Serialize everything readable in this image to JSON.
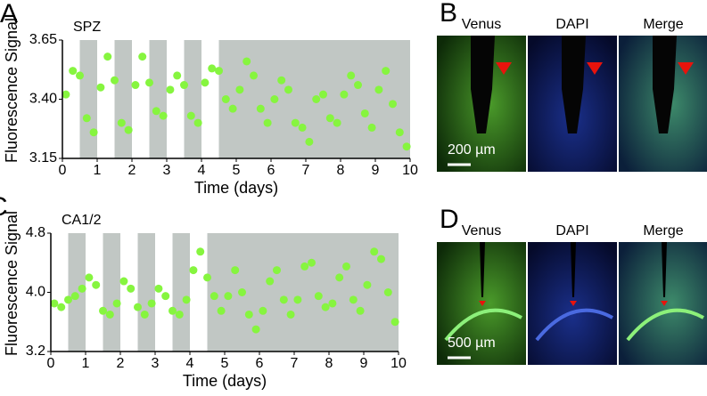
{
  "chart_data": [
    {
      "panel": "A",
      "type": "scatter",
      "title": "SPZ",
      "xlabel": "Time (days)",
      "ylabel": "Fluorescence Signal",
      "color": "#86f53f",
      "shaded": [
        [
          0.5,
          1
        ],
        [
          1.5,
          2
        ],
        [
          2.5,
          3
        ],
        [
          3.5,
          4
        ],
        [
          4.5,
          10
        ]
      ],
      "shade_color": "#c1c7c4",
      "x": [
        0.1,
        0.3,
        0.5,
        0.7,
        0.9,
        1.1,
        1.3,
        1.5,
        1.7,
        1.9,
        2.1,
        2.3,
        2.5,
        2.7,
        2.9,
        3.1,
        3.3,
        3.5,
        3.7,
        3.9,
        4.1,
        4.3,
        4.5,
        4.7,
        4.9,
        5.1,
        5.3,
        5.5,
        5.7,
        5.9,
        6.1,
        6.3,
        6.5,
        6.7,
        6.9,
        7.1,
        7.3,
        7.5,
        7.7,
        7.9,
        8.1,
        8.3,
        8.5,
        8.7,
        8.9,
        9.1,
        9.3,
        9.5,
        9.7,
        9.9
      ],
      "values": [
        3.42,
        3.52,
        3.5,
        3.32,
        3.26,
        3.45,
        3.58,
        3.48,
        3.3,
        3.27,
        3.46,
        3.58,
        3.47,
        3.35,
        3.33,
        3.44,
        3.5,
        3.46,
        3.33,
        3.3,
        3.47,
        3.53,
        3.52,
        3.4,
        3.36,
        3.44,
        3.56,
        3.5,
        3.36,
        3.3,
        3.4,
        3.48,
        3.44,
        3.3,
        3.28,
        3.22,
        3.4,
        3.42,
        3.32,
        3.3,
        3.42,
        3.5,
        3.46,
        3.34,
        3.28,
        3.44,
        3.52,
        3.38,
        3.26,
        3.2
      ],
      "xlim": [
        0,
        10
      ],
      "ylim": [
        3.15,
        3.65
      ],
      "xticks": [
        0,
        1,
        2,
        3,
        4,
        5,
        6,
        7,
        8,
        9,
        10
      ],
      "yticks": [
        3.15,
        {
          "value": 3.4,
          "label": "3.40"
        },
        3.65
      ]
    },
    {
      "panel": "C",
      "type": "scatter",
      "title": "CA1/2",
      "xlabel": "Time (days)",
      "ylabel": "Fluorescence Signal",
      "color": "#86f53f",
      "shaded": [
        [
          0.5,
          1
        ],
        [
          1.5,
          2
        ],
        [
          2.5,
          3
        ],
        [
          3.5,
          4
        ],
        [
          4.5,
          10
        ]
      ],
      "shade_color": "#c1c7c4",
      "x": [
        0.1,
        0.3,
        0.5,
        0.7,
        0.9,
        1.1,
        1.3,
        1.5,
        1.7,
        1.9,
        2.1,
        2.3,
        2.5,
        2.7,
        2.9,
        3.1,
        3.3,
        3.5,
        3.7,
        3.9,
        4.1,
        4.3,
        4.5,
        4.7,
        4.9,
        5.1,
        5.3,
        5.5,
        5.7,
        5.9,
        6.1,
        6.3,
        6.5,
        6.7,
        6.9,
        7.1,
        7.3,
        7.5,
        7.7,
        7.9,
        8.1,
        8.3,
        8.5,
        8.7,
        8.9,
        9.1,
        9.3,
        9.5,
        9.7,
        9.9
      ],
      "values": [
        3.85,
        3.8,
        3.9,
        3.95,
        4.05,
        4.2,
        4.1,
        3.75,
        3.7,
        3.85,
        4.15,
        4.05,
        3.8,
        3.7,
        3.85,
        4.05,
        3.95,
        3.75,
        3.7,
        3.9,
        4.3,
        4.55,
        4.2,
        3.95,
        3.75,
        3.95,
        4.3,
        4.0,
        3.7,
        3.5,
        3.75,
        4.15,
        4.3,
        3.9,
        3.7,
        3.9,
        4.35,
        4.4,
        3.95,
        3.8,
        3.85,
        4.2,
        4.35,
        3.9,
        3.75,
        4.1,
        4.55,
        4.45,
        4.0,
        3.6
      ],
      "xlim": [
        0,
        10
      ],
      "ylim": [
        3.2,
        4.8
      ],
      "xticks": [
        0,
        1,
        2,
        3,
        4,
        5,
        6,
        7,
        8,
        9,
        10
      ],
      "yticks": [
        3.2,
        {
          "value": 4,
          "label": "4.0"
        },
        4.8
      ]
    }
  ],
  "images": [
    {
      "panel": "B",
      "labels": [
        "Venus",
        "DAPI",
        "Merge"
      ],
      "scale_bar": "200 µm"
    },
    {
      "panel": "D",
      "labels": [
        "Venus",
        "DAPI",
        "Merge"
      ],
      "scale_bar": "500 µm"
    }
  ]
}
